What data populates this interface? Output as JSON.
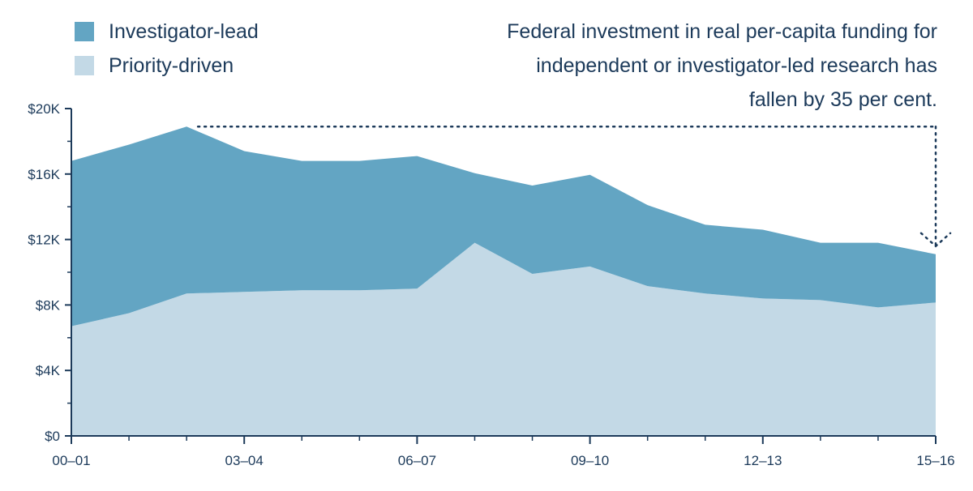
{
  "colors": {
    "investigator": "#63a5c3",
    "priority": "#c3d9e6",
    "axis": "#1c3a5a",
    "text": "#1c3a5a"
  },
  "legend": [
    {
      "label": "Investigator-lead",
      "color": "#63a5c3"
    },
    {
      "label": "Priority-driven",
      "color": "#c3d9e6"
    }
  ],
  "annotation": "Federal investment in real per-capita funding for independent or investigator-led research has fallen by 35 per cent.",
  "chart_data": {
    "type": "area",
    "stacked": true,
    "x": [
      "00–01",
      "01–02",
      "02–03",
      "03–04",
      "04–05",
      "05–06",
      "06–07",
      "07–08",
      "08–09",
      "09–10",
      "10–11",
      "11–12",
      "12–13",
      "13–14",
      "14–15",
      "15–16"
    ],
    "x_tick_labels": [
      "00–01",
      "03–04",
      "06–07",
      "09–10",
      "12–13",
      "15–16"
    ],
    "y_ticks": [
      0,
      4000,
      8000,
      12000,
      16000,
      20000
    ],
    "y_tick_labels": [
      "$0",
      "$4K",
      "$8K",
      "$12K",
      "$16K",
      "$20K"
    ],
    "ylim": [
      0,
      20000
    ],
    "series": [
      {
        "name": "Priority-driven",
        "values": [
          6700,
          7500,
          8700,
          8800,
          8900,
          8900,
          9000,
          11800,
          9900,
          10350,
          9150,
          8700,
          8400,
          8300,
          7850,
          8150
        ]
      },
      {
        "name": "Investigator-lead",
        "values": [
          10100,
          10300,
          10200,
          8600,
          7900,
          7900,
          8100,
          4250,
          5400,
          5600,
          4950,
          4200,
          4200,
          3500,
          3950,
          2950
        ]
      }
    ],
    "totals": [
      16800,
      17800,
      18900,
      17400,
      16800,
      16800,
      17100,
      16050,
      15300,
      15950,
      14100,
      12900,
      12600,
      11800,
      11800,
      11100
    ],
    "annotation_line": {
      "from_x": "02–03",
      "to_x": "15–16",
      "level": 18900,
      "arrow_to": 11100
    }
  }
}
